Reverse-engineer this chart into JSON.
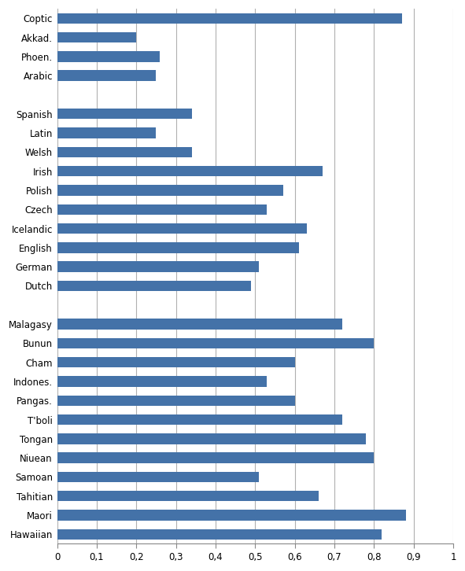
{
  "categories": [
    "Coptic",
    "Akkad.",
    "Phoen.",
    "Arabic",
    "",
    "Spanish",
    "Latin",
    "Welsh",
    "Irish",
    "Polish",
    "Czech",
    "Icelandic",
    "English",
    "German",
    "Dutch",
    " ",
    "Malagasy",
    "Bunun",
    "Cham",
    "Indones.",
    "Pangas.",
    "T'boli",
    "Tongan",
    "Niuean",
    "Samoan",
    "Tahitian",
    "Maori",
    "Hawaiian"
  ],
  "values": [
    0.87,
    0.2,
    0.26,
    0.25,
    0.0,
    0.34,
    0.25,
    0.34,
    0.67,
    0.57,
    0.53,
    0.63,
    0.61,
    0.51,
    0.49,
    0.0,
    0.72,
    0.8,
    0.6,
    0.53,
    0.6,
    0.72,
    0.78,
    0.8,
    0.51,
    0.66,
    0.88,
    0.82
  ],
  "bar_color": "#4472a8",
  "xlim": [
    0,
    1
  ],
  "xticks": [
    0,
    0.1,
    0.2,
    0.3,
    0.4,
    0.5,
    0.6,
    0.7,
    0.8,
    0.9,
    1
  ],
  "xtick_labels": [
    "0",
    "0,1",
    "0,2",
    "0,3",
    "0,4",
    "0,5",
    "0,6",
    "0,7",
    "0,8",
    "0,9",
    "1"
  ],
  "grid_color": "#b0b0b0",
  "background_color": "#ffffff",
  "figsize": [
    5.91,
    7.26
  ],
  "dpi": 100,
  "bar_height": 0.55,
  "label_fontsize": 8.5
}
